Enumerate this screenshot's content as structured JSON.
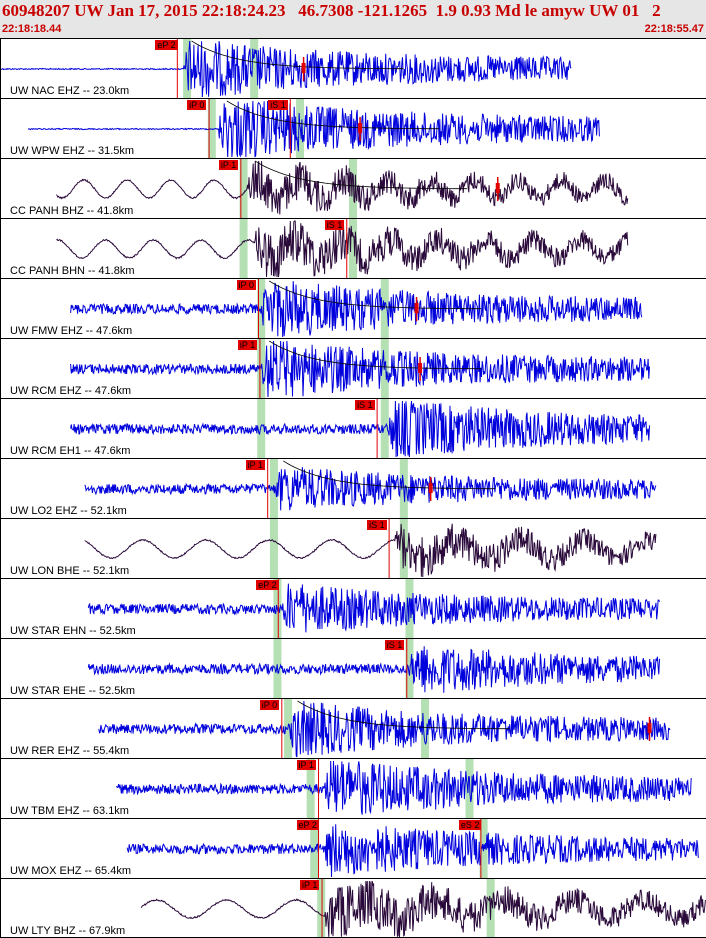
{
  "header": {
    "title": "60948207 UW Jan 17, 2015 22:18:24.23   46.7308 -121.1265  1.9 0.93 Md le amyw UW 01   2",
    "time_start": "22:18:18.44",
    "time_end": "22:18:55.47"
  },
  "colors": {
    "header_bg": "#e6e6e6",
    "header_text": "#c80000",
    "vertical_trace": "#0000dd",
    "horizontal_trace": "#2a0a3a",
    "pick_box": "#e00000",
    "pick_line": "#e00000",
    "green_band": "#b4e0b4",
    "model_curve": "#000000"
  },
  "channels": [
    {
      "label": "UW NAC EHZ -- 23.0km",
      "color": "blue",
      "start": 0.0,
      "end": 0.81,
      "onset": 0.26,
      "amp": 0.55,
      "lowfreq": false,
      "picks": [
        {
          "text": "eP 2",
          "pos": 0.22
        }
      ],
      "green": [
        0.265,
        0.36
      ],
      "curve": true,
      "marker": 0.43
    },
    {
      "label": "UW WPW EHZ -- 31.5km",
      "color": "blue",
      "start": 0.04,
      "end": 0.85,
      "onset": 0.31,
      "amp": 0.6,
      "lowfreq": false,
      "picks": [
        {
          "text": "iP 0",
          "pos": 0.265
        },
        {
          "text": "iS 1",
          "pos": 0.38
        }
      ],
      "green": [
        0.3,
        0.425
      ],
      "curve": true,
      "marker": 0.51
    },
    {
      "label": "CC PANH BHZ -- 41.8km",
      "color": "dark",
      "start": 0.08,
      "end": 0.89,
      "onset": 0.35,
      "amp": 0.45,
      "lowfreq": true,
      "picks": [
        {
          "text": "iP 1",
          "pos": 0.31
        }
      ],
      "green": [
        0.345,
        0.5
      ],
      "curve": true,
      "marker": 0.705
    },
    {
      "label": "CC PANH BHN -- 41.8km",
      "color": "dark",
      "start": 0.08,
      "end": 0.89,
      "onset": 0.36,
      "amp": 0.55,
      "lowfreq": true,
      "picks": [
        {
          "text": "iS 1",
          "pos": 0.46
        }
      ],
      "green": [
        0.345,
        0.5
      ],
      "curve": false,
      "marker": null
    },
    {
      "label": "UW FMW EHZ -- 47.6km",
      "color": "blue",
      "start": 0.1,
      "end": 0.91,
      "onset": 0.37,
      "amp": 0.55,
      "lowfreq": false,
      "picks": [
        {
          "text": "iP 0",
          "pos": 0.335
        }
      ],
      "green": [
        0.37,
        0.545
      ],
      "curve": true,
      "marker": 0.59
    },
    {
      "label": "UW RCM EHZ -- 47.6km",
      "color": "blue",
      "start": 0.1,
      "end": 0.92,
      "onset": 0.37,
      "amp": 0.55,
      "lowfreq": false,
      "picks": [
        {
          "text": "iP 1",
          "pos": 0.337
        }
      ],
      "green": [
        0.37,
        0.545
      ],
      "curve": true,
      "marker": 0.595
    },
    {
      "label": "UW RCM EH1 -- 47.6km",
      "color": "blue",
      "start": 0.1,
      "end": 0.92,
      "onset": 0.55,
      "amp": 0.55,
      "lowfreq": false,
      "picks": [
        {
          "text": "iS 1",
          "pos": 0.503
        }
      ],
      "green": [
        0.37,
        0.545
      ],
      "curve": false,
      "marker": null
    },
    {
      "label": "UW LO2 EHZ -- 52.1km",
      "color": "blue",
      "start": 0.12,
      "end": 0.93,
      "onset": 0.39,
      "amp": 0.4,
      "lowfreq": false,
      "picks": [
        {
          "text": "iP 1",
          "pos": 0.348
        }
      ],
      "green": [
        0.388,
        0.572
      ],
      "curve": true,
      "marker": 0.61
    },
    {
      "label": "UW LON BHE -- 52.1km",
      "color": "dark",
      "start": 0.12,
      "end": 0.93,
      "onset": 0.56,
      "amp": 0.45,
      "lowfreq": true,
      "picks": [
        {
          "text": "iS 1",
          "pos": 0.52
        }
      ],
      "green": [
        0.388,
        0.572
      ],
      "curve": false,
      "marker": null
    },
    {
      "label": "UW STAR EHN -- 52.5km",
      "color": "blue",
      "start": 0.125,
      "end": 0.935,
      "onset": 0.4,
      "amp": 0.45,
      "lowfreq": false,
      "picks": [
        {
          "text": "eP 2",
          "pos": 0.363
        }
      ],
      "green": [
        0.393,
        0.58
      ],
      "curve": false,
      "marker": null
    },
    {
      "label": "UW STAR EHE -- 52.5km",
      "color": "blue",
      "start": 0.125,
      "end": 0.935,
      "onset": 0.58,
      "amp": 0.45,
      "lowfreq": false,
      "picks": [
        {
          "text": "iS 1",
          "pos": 0.545
        }
      ],
      "green": [
        0.393,
        0.58
      ],
      "curve": false,
      "marker": null
    },
    {
      "label": "UW RER EHZ -- 55.4km",
      "color": "blue",
      "start": 0.14,
      "end": 0.95,
      "onset": 0.41,
      "amp": 0.5,
      "lowfreq": false,
      "picks": [
        {
          "text": "iP 0",
          "pos": 0.368
        }
      ],
      "green": [
        0.408,
        0.602
      ],
      "curve": true,
      "marker": 0.92
    },
    {
      "label": "UW TBM EHZ -- 63.1km",
      "color": "blue",
      "start": 0.165,
      "end": 0.98,
      "onset": 0.46,
      "amp": 0.55,
      "lowfreq": false,
      "picks": [
        {
          "text": "iP 1",
          "pos": 0.42
        }
      ],
      "green": [
        0.44,
        0.665
      ],
      "curve": false,
      "marker": null
    },
    {
      "label": "UW MOX EHZ -- 65.4km",
      "color": "blue",
      "start": 0.18,
      "end": 0.99,
      "onset": 0.46,
      "amp": 0.5,
      "lowfreq": false,
      "picks": [
        {
          "text": "eP 2",
          "pos": 0.42
        },
        {
          "text": "eS 2",
          "pos": 0.65
        }
      ],
      "green": [
        0.445,
        0.685
      ],
      "curve": false,
      "marker": null
    },
    {
      "label": "UW LTY BHZ -- 67.9km",
      "color": "dark",
      "start": 0.2,
      "end": 1.0,
      "onset": 0.46,
      "amp": 0.6,
      "lowfreq": true,
      "picks": [
        {
          "text": "iP 1",
          "pos": 0.425
        }
      ],
      "green": [
        0.455,
        0.695
      ],
      "curve": false,
      "marker": null
    }
  ]
}
